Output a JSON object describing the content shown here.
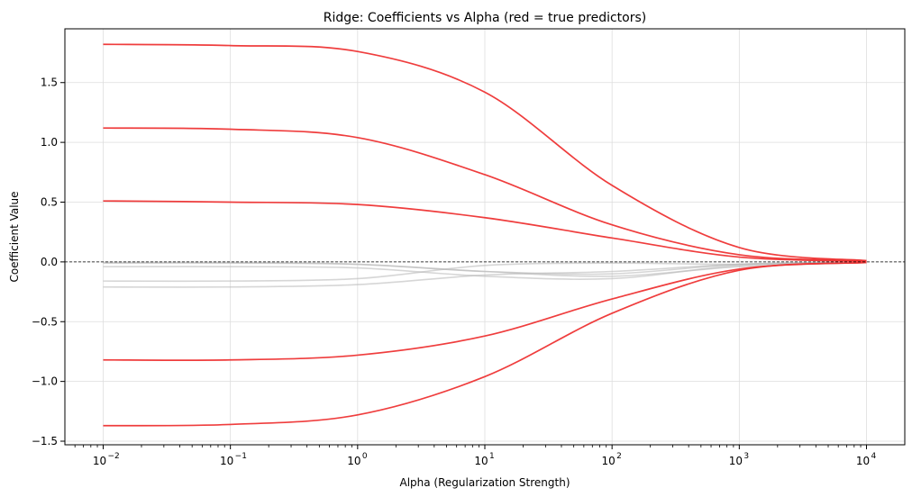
{
  "chart_data": {
    "type": "line",
    "title": "Ridge: Coefficients vs Alpha (red = true predictors)",
    "xlabel": "Alpha (Regularization Strength)",
    "ylabel": "Coefficient Value",
    "x_scale": "log",
    "xlim": [
      0.005,
      20000
    ],
    "ylim": [
      -1.53,
      1.95
    ],
    "grid": true,
    "x_ticks": [
      {
        "base": "10",
        "exp": "−2"
      },
      {
        "base": "10",
        "exp": "−1"
      },
      {
        "base": "10",
        "exp": "0"
      },
      {
        "base": "10",
        "exp": "1"
      },
      {
        "base": "10",
        "exp": "2"
      },
      {
        "base": "10",
        "exp": "3"
      },
      {
        "base": "10",
        "exp": "4"
      }
    ],
    "y_ticks": [
      "−1.5",
      "−1.0",
      "−0.5",
      "0.0",
      "0.5",
      "1.0",
      "1.5"
    ],
    "y_tick_values": [
      -1.5,
      -1.0,
      -0.5,
      0.0,
      0.5,
      1.0,
      1.5
    ],
    "x": [
      0.01,
      0.1,
      1,
      10,
      100,
      1000,
      10000
    ],
    "reference_line": {
      "y": 0,
      "style": "dashed",
      "color": "#000000"
    },
    "series": [
      {
        "group": "true",
        "color": "#ee3333",
        "values": [
          1.82,
          1.81,
          1.76,
          1.42,
          0.64,
          0.12,
          0.01
        ]
      },
      {
        "group": "true",
        "color": "#ee3333",
        "values": [
          1.12,
          1.11,
          1.04,
          0.73,
          0.31,
          0.06,
          0.01
        ]
      },
      {
        "group": "true",
        "color": "#ee3333",
        "values": [
          0.51,
          0.5,
          0.48,
          0.37,
          0.2,
          0.04,
          0.005
        ]
      },
      {
        "group": "true",
        "color": "#ee3333",
        "values": [
          -0.82,
          -0.82,
          -0.78,
          -0.62,
          -0.31,
          -0.06,
          -0.005
        ]
      },
      {
        "group": "true",
        "color": "#ee3333",
        "values": [
          -1.37,
          -1.36,
          -1.28,
          -0.96,
          -0.43,
          -0.07,
          -0.005
        ]
      },
      {
        "group": "noise",
        "color": "#bbbbbb",
        "values": [
          -0.01,
          -0.01,
          -0.02,
          -0.08,
          -0.12,
          -0.04,
          -0.005
        ]
      },
      {
        "group": "noise",
        "color": "#bbbbbb",
        "values": [
          -0.04,
          -0.04,
          -0.05,
          -0.12,
          -0.14,
          -0.03,
          -0.003
        ]
      },
      {
        "group": "noise",
        "color": "#bbbbbb",
        "values": [
          -0.16,
          -0.16,
          -0.14,
          -0.03,
          -0.01,
          -0.02,
          -0.002
        ]
      },
      {
        "group": "noise",
        "color": "#bbbbbb",
        "values": [
          -0.21,
          -0.21,
          -0.19,
          -0.11,
          -0.08,
          -0.02,
          -0.002
        ]
      },
      {
        "group": "noise",
        "color": "#bbbbbb",
        "values": [
          -0.005,
          -0.005,
          -0.02,
          -0.08,
          -0.1,
          -0.02,
          -0.002
        ]
      }
    ]
  }
}
